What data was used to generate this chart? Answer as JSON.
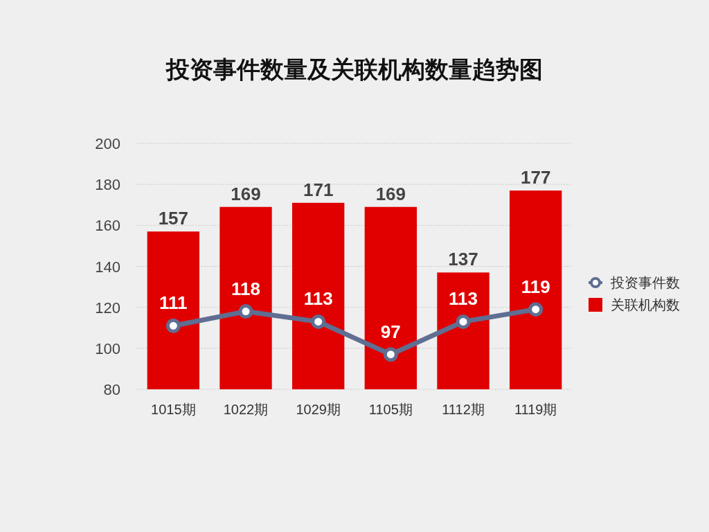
{
  "chart_data": {
    "type": "bar",
    "title": "投资事件数量及关联机构数量趋势图",
    "categories": [
      "1015期",
      "1022期",
      "1029期",
      "1105期",
      "1112期",
      "1119期"
    ],
    "series": [
      {
        "name": "投资事件数",
        "type": "line",
        "color": "#5f6e92",
        "values": [
          111,
          118,
          113,
          97,
          113,
          119
        ]
      },
      {
        "name": "关联机构数",
        "color": "#e00000",
        "values": [
          157,
          169,
          171,
          169,
          137,
          177
        ]
      }
    ],
    "ylim": [
      80,
      200
    ],
    "yticks": [
      80,
      100,
      120,
      140,
      160,
      180,
      200
    ],
    "grid": "y",
    "legend": "right",
    "data_labels": true,
    "marker": "circle",
    "line_style": "solid"
  }
}
